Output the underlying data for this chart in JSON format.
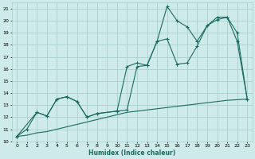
{
  "xlabel": "Humidex (Indice chaleur)",
  "bg_color": "#ceeaea",
  "grid_color": "#aacfcf",
  "line_color": "#1a6b60",
  "xlim": [
    -0.5,
    23.5
  ],
  "ylim": [
    10,
    21.5
  ],
  "xticks": [
    0,
    1,
    2,
    3,
    4,
    5,
    6,
    7,
    8,
    9,
    10,
    11,
    12,
    13,
    14,
    15,
    16,
    17,
    18,
    19,
    20,
    21,
    22,
    23
  ],
  "yticks": [
    10,
    11,
    12,
    13,
    14,
    15,
    16,
    17,
    18,
    19,
    20,
    21
  ],
  "line1_x": [
    0,
    1,
    2,
    3,
    4,
    5,
    6,
    7,
    8,
    10,
    11,
    12,
    13,
    14,
    15,
    16,
    17,
    18,
    19,
    20,
    21,
    22,
    23
  ],
  "line1_y": [
    10.4,
    11.0,
    12.4,
    12.1,
    13.5,
    13.7,
    13.3,
    12.0,
    12.3,
    12.5,
    12.6,
    16.2,
    16.3,
    18.3,
    21.2,
    20.0,
    19.5,
    18.3,
    19.6,
    20.3,
    20.3,
    18.3,
    13.5
  ],
  "line2_x": [
    0,
    2,
    3,
    4,
    5,
    6,
    7,
    8,
    10,
    11,
    12,
    13,
    14,
    15,
    16,
    17,
    18,
    19,
    20,
    21,
    22,
    23
  ],
  "line2_y": [
    10.4,
    12.4,
    12.1,
    13.5,
    13.7,
    13.3,
    12.0,
    12.3,
    12.5,
    16.2,
    16.5,
    16.3,
    18.3,
    18.5,
    16.4,
    16.5,
    17.9,
    19.6,
    20.1,
    20.3,
    19.0,
    13.5
  ],
  "line3_x": [
    0,
    1,
    2,
    3,
    4,
    5,
    6,
    7,
    8,
    9,
    10,
    11,
    12,
    13,
    14,
    15,
    16,
    17,
    18,
    19,
    20,
    21,
    22,
    23
  ],
  "line3_y": [
    10.4,
    10.5,
    10.7,
    10.8,
    11.0,
    11.2,
    11.4,
    11.6,
    11.8,
    12.0,
    12.2,
    12.4,
    12.5,
    12.6,
    12.7,
    12.8,
    12.9,
    13.0,
    13.1,
    13.2,
    13.3,
    13.4,
    13.45,
    13.5
  ]
}
